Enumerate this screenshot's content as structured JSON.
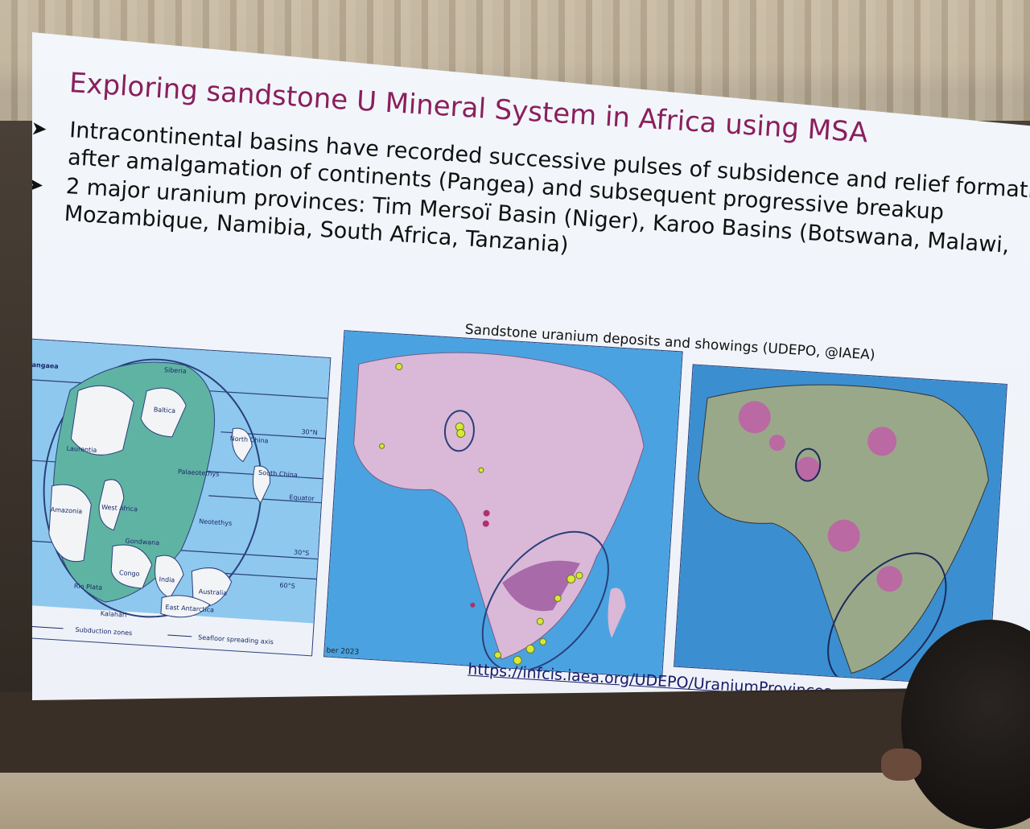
{
  "slide": {
    "title": "Exploring sandstone U Mineral System in Africa using MSA",
    "bullets": [
      {
        "lines": [
          "Intracontinental basins have recorded successive pulses of subsidence  and relief formations",
          "after amalgamation of continents (Pangea) and subsequent progressive breakup"
        ]
      },
      {
        "lines": [
          "2 major uranium provinces: Tim Mersoï Basin (Niger), Karoo Basins (Botswana, Malawi,",
          "Mozambique, Namibia, South Africa, Tanzania)"
        ]
      }
    ],
    "bullet_icon": "arrowhead-bullet-icon",
    "map_title": "Sandstone uranium deposits and showings (UDEPO, @IAEA)",
    "pangaea_map": {
      "labels": [
        "Pangaea",
        "Siberia",
        "Baltica",
        "Laurentia",
        "North China",
        "South China",
        "Palaeotethys",
        "Equator",
        "West Africa",
        "Amazonia",
        "Gondwana",
        "Neotethys",
        "Congo",
        "Rio Plata",
        "India",
        "Australia",
        "East Antarctica",
        "Kalahari"
      ],
      "latitudes": [
        "30°N",
        "30°S",
        "60°S"
      ],
      "legend": [
        "Subduction zones",
        "Seafloor spreading axis"
      ]
    },
    "deposit_map": {
      "date_fragment": "ber 2023"
    },
    "url": "https://infcis.iaea.org/UDEPO/UraniumProvinces"
  },
  "colors": {
    "title": "#8a1f5c",
    "ocean": "#5aa8e0",
    "continent_pink": "#d9b8d8",
    "deposit": "#d8e83a",
    "gondwana": "#5fb3a3"
  }
}
